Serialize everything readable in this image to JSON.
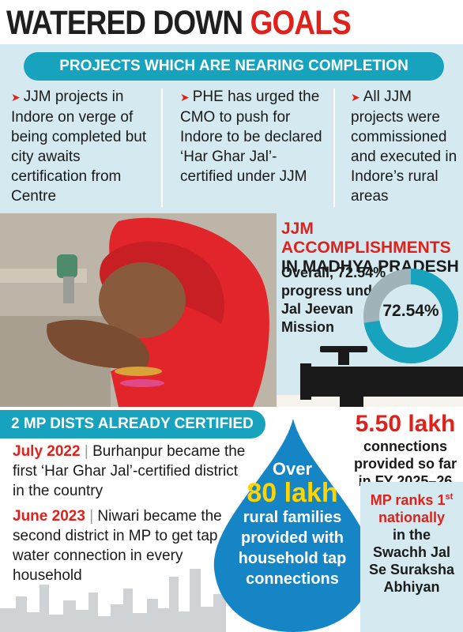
{
  "title": {
    "part1": "WATERED DOWN",
    "part2": "GOALS"
  },
  "projects": {
    "banner": "PROJECTS WHICH ARE NEARING COMPLETION",
    "columns": [
      {
        "text": "JJM projects in Indore on verge of being completed but city awaits certification from Centre"
      },
      {
        "text": "PHE has urged the CMO to push for Indore to be declared ‘Har Ghar Jal’-certified under JJM"
      },
      {
        "text": "All JJM projects were commissioned and executed in Indore’s rural areas"
      }
    ]
  },
  "accomplishments": {
    "title_line1": "JJM ACCOMPLISHMENTS",
    "title_line2": "IN MADHYA PRADESH",
    "text": "Overall, 72.54% progress under Jal Jeevan Mission",
    "progress_label": "72.54%",
    "progress_value": 72.54,
    "colors": {
      "progress": "#17a3bd",
      "remaining": "#9fb3b9"
    }
  },
  "certified": {
    "banner": "2 MP DISTS ALREADY CERTIFIED",
    "items": [
      {
        "date": "July 2022",
        "text": "Burhanpur became the first ‘Har Ghar Jal’-certified district in the country"
      },
      {
        "date": "June 2023",
        "text": "Niwari became the second district in MP to get tap water connection in every household"
      }
    ]
  },
  "drop": {
    "over": "Over",
    "value": "80 lakh",
    "text_lines": [
      "rural families",
      "provided with",
      "household tap",
      "connections"
    ]
  },
  "connections": {
    "value": "5.50 lakh",
    "text_lines": [
      "connections",
      "provided so far",
      "in FY 2025–26"
    ]
  },
  "rank": {
    "line1": "MP ranks 1",
    "sup": "st",
    "line2": "nationally",
    "text_lines": [
      "in the",
      "Swachh Jal",
      "Se Suraksha",
      "Abhiyan"
    ]
  },
  "colors": {
    "accent_red": "#e0201b",
    "accent_teal": "#17a3bd",
    "panel_blue": "#d5eaf0",
    "highlight_yellow": "#ffd400"
  }
}
